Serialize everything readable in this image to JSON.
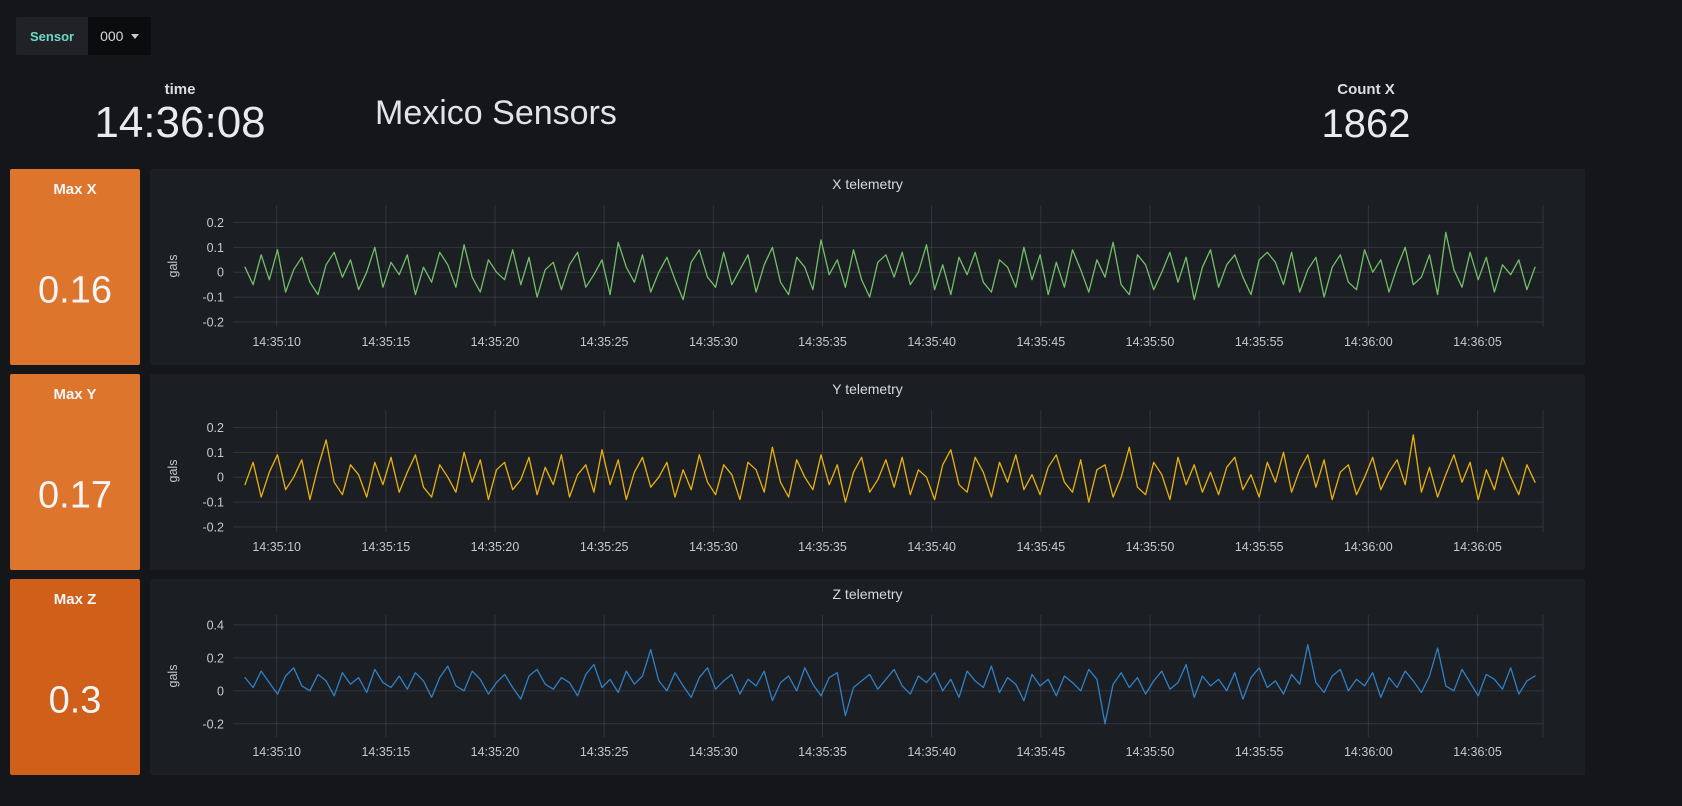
{
  "colors": {
    "page_bg": "#141619",
    "panel_bg": "#1b1e23",
    "grid": "rgba(201,209,217,0.13)",
    "axis_text": "#c7c8cd",
    "accent_teal": "#6cd9c7",
    "orange": "#dd752d",
    "dark_orange": "#cf5f19",
    "green": "#73bf69",
    "yellow": "#e9b10e",
    "blue": "#3080c6"
  },
  "submenu": {
    "variable_label": "Sensor",
    "variable_value": "000"
  },
  "top_row": {
    "time_panel": {
      "title": "time",
      "value": "14:36:08"
    },
    "dashboard_title": "Mexico Sensors",
    "count_panel": {
      "title": "Count X",
      "value": "1862"
    }
  },
  "stat_panels": [
    {
      "title": "Max X",
      "value": "0.16",
      "bg": "#dd752d"
    },
    {
      "title": "Max Y",
      "value": "0.17",
      "bg": "#dd752d"
    },
    {
      "title": "Max Z",
      "value": "0.3",
      "bg": "#cf5f19"
    }
  ],
  "chart_data": [
    {
      "type": "line",
      "title": "X telemetry",
      "ylabel": "gals",
      "line_color": "#73bf69",
      "x_window": {
        "start": "14:35:08",
        "end": "14:36:08",
        "seconds": 60
      },
      "x_tick_labels": [
        "14:35:10",
        "14:35:15",
        "14:35:20",
        "14:35:25",
        "14:35:30",
        "14:35:35",
        "14:35:40",
        "14:35:45",
        "14:35:50",
        "14:35:55",
        "14:36:00",
        "14:36:05"
      ],
      "x_tick_seconds": [
        2,
        7,
        12,
        17,
        22,
        27,
        32,
        37,
        42,
        47,
        52,
        57
      ],
      "y_ticks": [
        0.2,
        0.1,
        0,
        -0.1,
        -0.2
      ],
      "ylim": [
        -0.22,
        0.27
      ],
      "grid": true,
      "legend": "none",
      "value_scale": 0.01,
      "values_x100": [
        2,
        -5,
        7,
        -3,
        9,
        -8,
        1,
        6,
        -4,
        -9,
        3,
        8,
        -2,
        5,
        -7,
        0,
        10,
        -6,
        4,
        -1,
        7,
        -9,
        2,
        -4,
        8,
        3,
        -6,
        11,
        -2,
        -8,
        5,
        0,
        -3,
        9,
        -5,
        6,
        -10,
        1,
        4,
        -7,
        3,
        8,
        -6,
        -1,
        5,
        -9,
        12,
        2,
        -4,
        7,
        -8,
        0,
        6,
        -3,
        -11,
        4,
        9,
        -2,
        -6,
        8,
        -5,
        1,
        7,
        -8,
        3,
        10,
        -4,
        -9,
        6,
        2,
        -7,
        13,
        -1,
        5,
        -6,
        9,
        -3,
        -10,
        4,
        7,
        -2,
        8,
        -5,
        0,
        11,
        -7,
        3,
        -9,
        6,
        -1,
        8,
        -4,
        -8,
        5,
        2,
        -6,
        10,
        -3,
        7,
        -9,
        4,
        -6,
        9,
        1,
        -8,
        5,
        -2,
        12,
        -5,
        -9,
        7,
        3,
        -7,
        0,
        8,
        -4,
        6,
        -11,
        2,
        9,
        -6,
        3,
        7,
        -2,
        -9,
        5,
        8,
        4,
        -5,
        8,
        -8,
        1,
        6,
        -10,
        2,
        7,
        -4,
        -7,
        9,
        0,
        5,
        -8,
        2,
        10,
        -5,
        -2,
        7,
        -9,
        16,
        1,
        -6,
        8,
        -3,
        6,
        -8,
        3,
        -1,
        5,
        -7,
        2
      ]
    },
    {
      "type": "line",
      "title": "Y telemetry",
      "ylabel": "gals",
      "line_color": "#e9b10e",
      "x_window": {
        "start": "14:35:08",
        "end": "14:36:08",
        "seconds": 60
      },
      "x_tick_labels": [
        "14:35:10",
        "14:35:15",
        "14:35:20",
        "14:35:25",
        "14:35:30",
        "14:35:35",
        "14:35:40",
        "14:35:45",
        "14:35:50",
        "14:35:55",
        "14:36:00",
        "14:36:05"
      ],
      "x_tick_seconds": [
        2,
        7,
        12,
        17,
        22,
        27,
        32,
        37,
        42,
        47,
        52,
        57
      ],
      "y_ticks": [
        0.2,
        0.1,
        0,
        -0.1,
        -0.2
      ],
      "ylim": [
        -0.22,
        0.27
      ],
      "grid": true,
      "legend": "none",
      "value_scale": 0.01,
      "values_x100": [
        -3,
        6,
        -8,
        2,
        9,
        -5,
        0,
        7,
        -9,
        4,
        15,
        -2,
        -7,
        5,
        1,
        -8,
        6,
        -3,
        8,
        -6,
        2,
        9,
        -4,
        -8,
        5,
        0,
        -6,
        10,
        -2,
        7,
        -9,
        3,
        6,
        -5,
        -1,
        8,
        -7,
        4,
        -3,
        9,
        -8,
        1,
        5,
        -6,
        11,
        -3,
        7,
        -9,
        2,
        8,
        -4,
        0,
        6,
        -8,
        3,
        -5,
        9,
        -2,
        -7,
        5,
        1,
        -9,
        6,
        3,
        -6,
        12,
        -2,
        -8,
        7,
        0,
        -5,
        9,
        -3,
        5,
        -10,
        2,
        8,
        -6,
        -1,
        7,
        -4,
        8,
        -7,
        3,
        0,
        -9,
        5,
        11,
        -3,
        -6,
        8,
        2,
        -8,
        6,
        -2,
        9,
        -5,
        1,
        -7,
        4,
        9,
        -2,
        -6,
        7,
        -10,
        3,
        5,
        -8,
        0,
        12,
        -4,
        -7,
        6,
        1,
        -9,
        8,
        -3,
        5,
        -6,
        2,
        -7,
        4,
        8,
        -5,
        1,
        -8,
        6,
        -2,
        10,
        -6,
        3,
        9,
        -4,
        7,
        -9,
        2,
        5,
        -7,
        0,
        8,
        -5,
        2,
        7,
        -3,
        17,
        -6,
        4,
        -8,
        1,
        9,
        -2,
        6,
        -9,
        3,
        -5,
        8,
        0,
        -7,
        5,
        -2
      ]
    },
    {
      "type": "line",
      "title": "Z telemetry",
      "ylabel": "gals",
      "line_color": "#3080c6",
      "x_window": {
        "start": "14:35:08",
        "end": "14:36:08",
        "seconds": 60
      },
      "x_tick_labels": [
        "14:35:10",
        "14:35:15",
        "14:35:20",
        "14:35:25",
        "14:35:30",
        "14:35:35",
        "14:35:40",
        "14:35:45",
        "14:35:50",
        "14:35:55",
        "14:36:00",
        "14:36:05"
      ],
      "x_tick_seconds": [
        2,
        7,
        12,
        17,
        22,
        27,
        32,
        37,
        42,
        47,
        52,
        57
      ],
      "y_ticks": [
        0.4,
        0.2,
        0,
        -0.2
      ],
      "ylim": [
        -0.28,
        0.46
      ],
      "grid": true,
      "legend": "none",
      "value_scale": 0.01,
      "values_x100": [
        8,
        2,
        12,
        5,
        -2,
        9,
        14,
        3,
        0,
        10,
        6,
        -3,
        11,
        4,
        8,
        -1,
        13,
        5,
        2,
        9,
        1,
        11,
        6,
        -4,
        8,
        15,
        3,
        0,
        12,
        7,
        -2,
        5,
        10,
        2,
        -5,
        9,
        13,
        4,
        1,
        8,
        5,
        -3,
        10,
        16,
        2,
        7,
        -1,
        12,
        4,
        9,
        25,
        6,
        0,
        11,
        3,
        -4,
        8,
        14,
        1,
        6,
        10,
        -2,
        7,
        3,
        12,
        -6,
        5,
        9,
        0,
        14,
        4,
        -3,
        8,
        11,
        -15,
        2,
        6,
        10,
        1,
        7,
        13,
        3,
        -2,
        9,
        5,
        11,
        0,
        7,
        -4,
        12,
        6,
        2,
        15,
        -1,
        8,
        4,
        -6,
        10,
        3,
        7,
        -3,
        9,
        5,
        0,
        13,
        7,
        -20,
        4,
        11,
        2,
        8,
        -2,
        6,
        12,
        1,
        5,
        16,
        -4,
        9,
        3,
        7,
        0,
        11,
        -5,
        8,
        14,
        2,
        6,
        -2,
        10,
        4,
        28,
        5,
        -1,
        9,
        13,
        0,
        7,
        3,
        11,
        -4,
        8,
        2,
        12,
        6,
        -1,
        9,
        26,
        3,
        0,
        13,
        5,
        -3,
        10,
        7,
        1,
        14,
        -2,
        6,
        9
      ]
    }
  ]
}
